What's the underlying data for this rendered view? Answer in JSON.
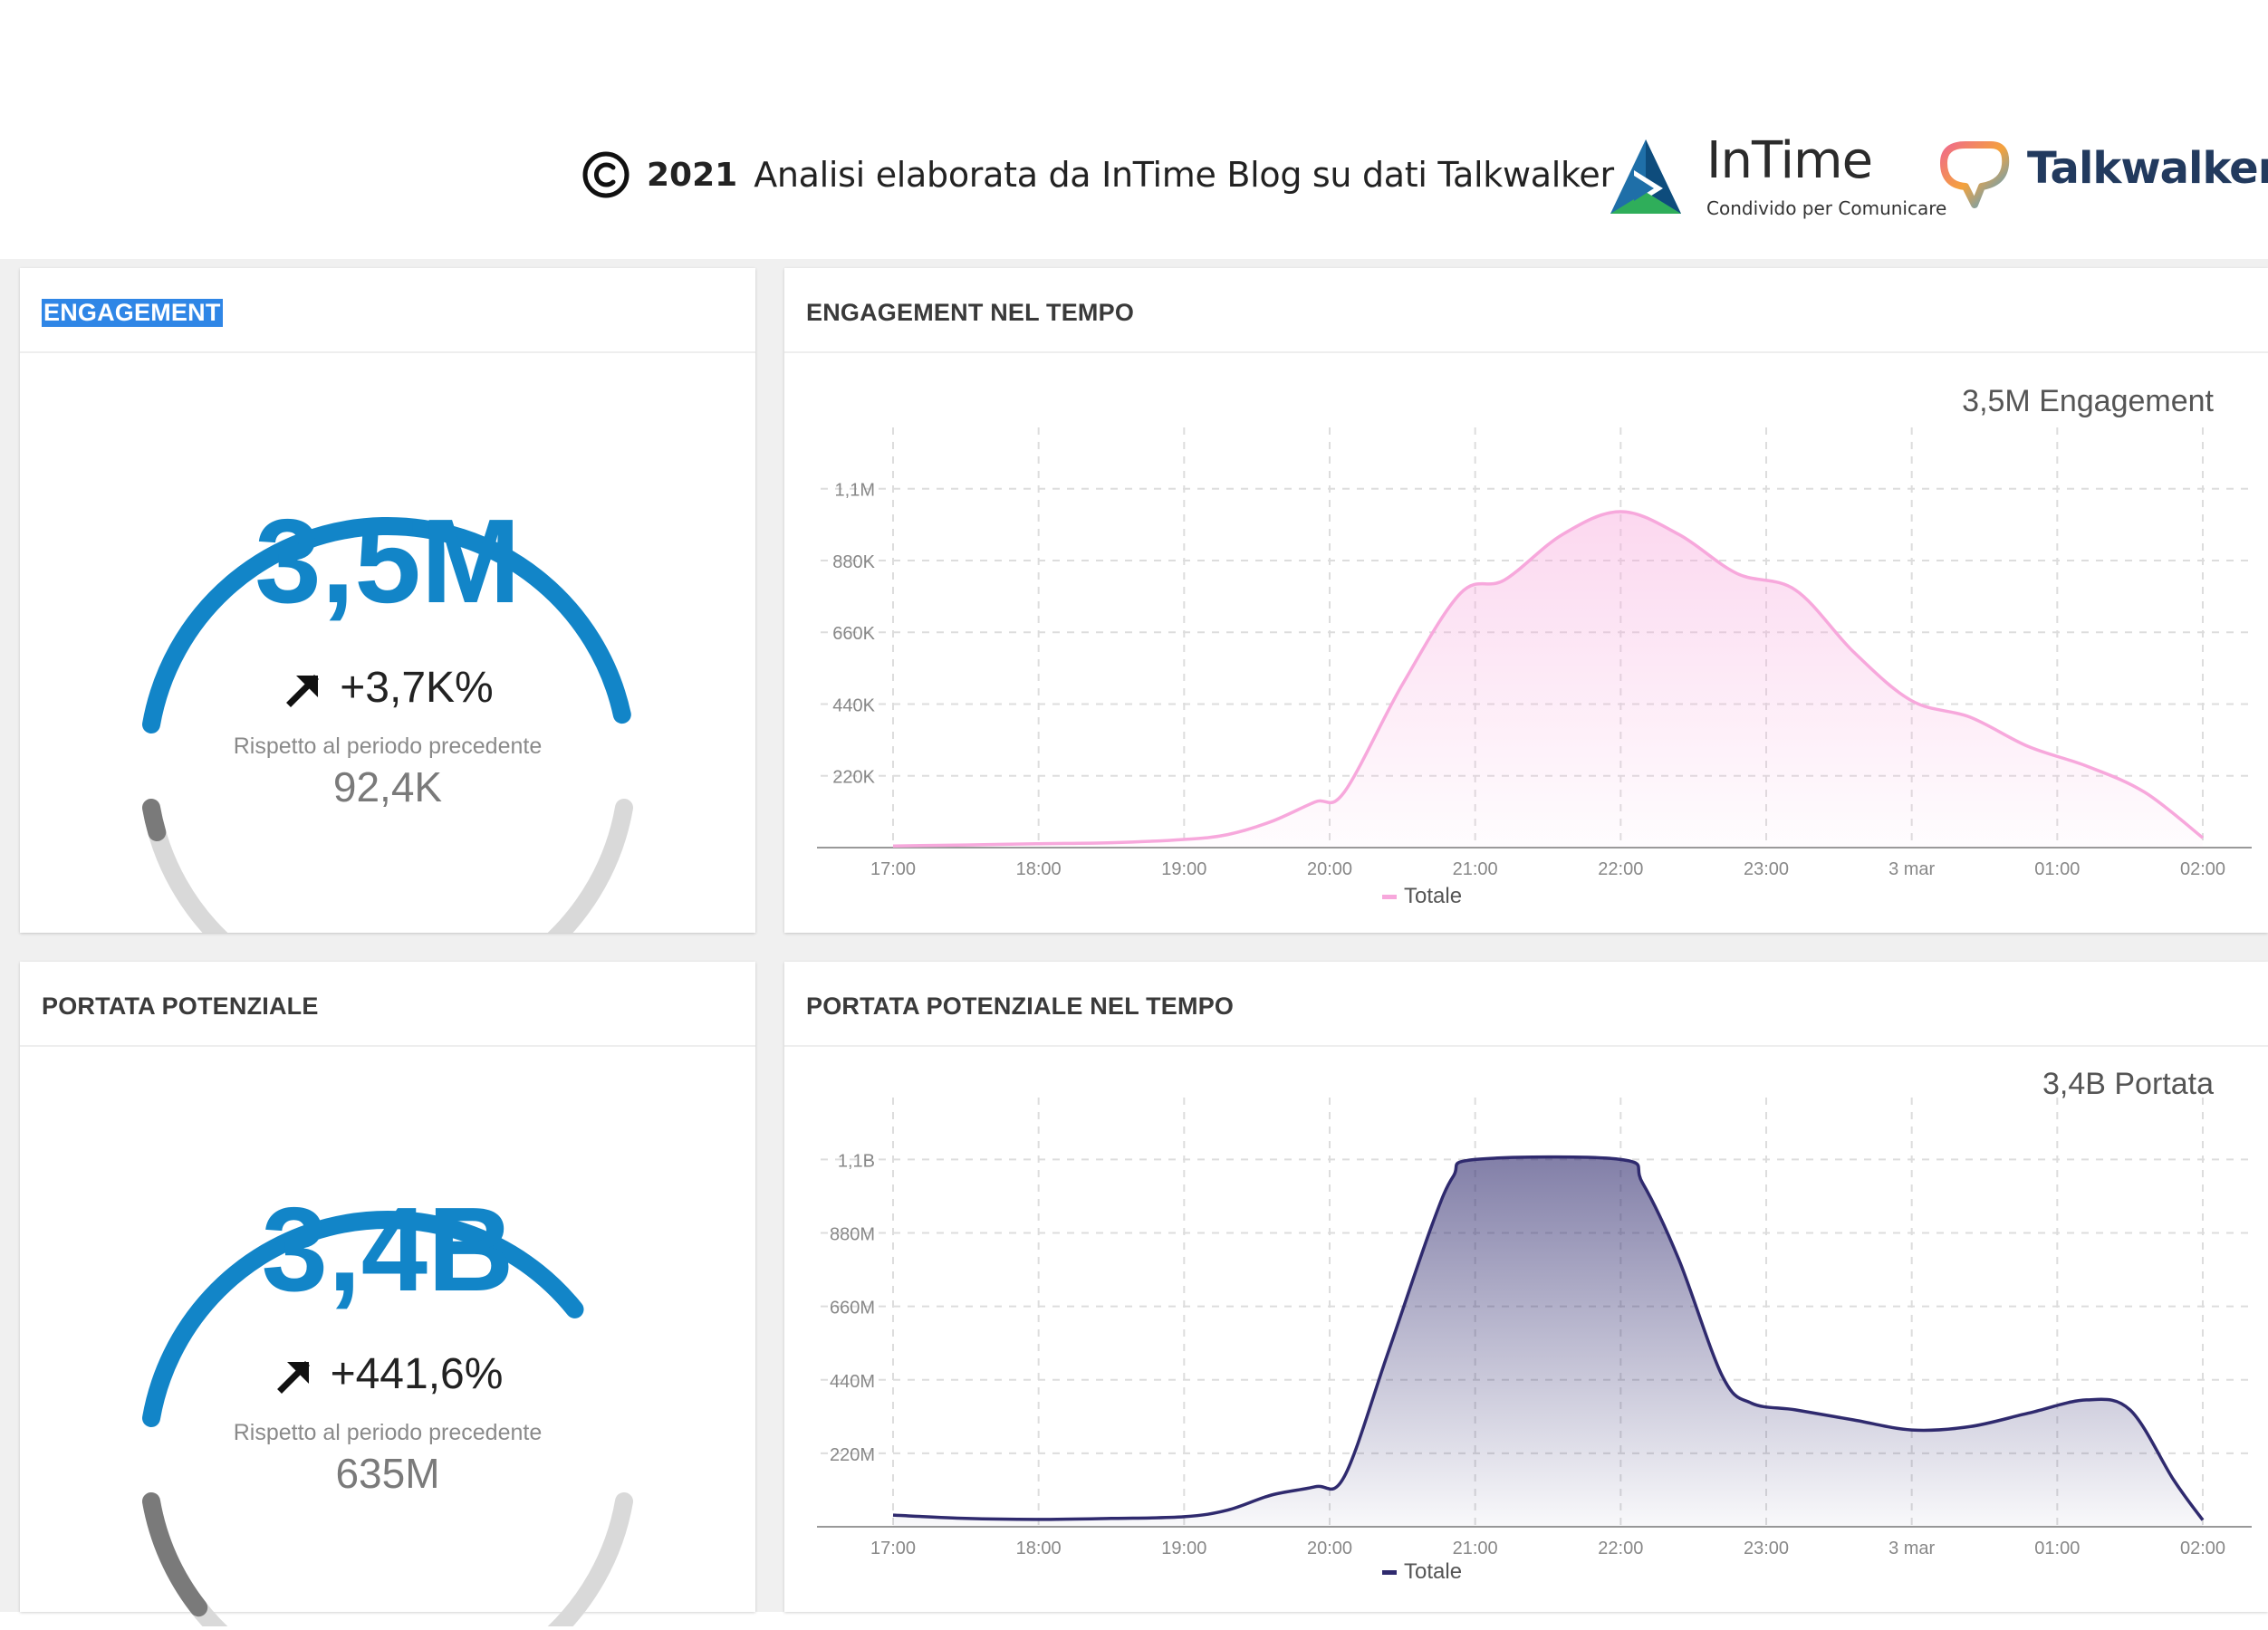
{
  "header": {
    "credit_year": "2021",
    "credit_text": "Analisi elaborata da InTime Blog su dati Talkwalker",
    "intime_name": "InTime",
    "intime_tagline": "Condivido per Comunicare",
    "talkwalker_name": "Talkwalker"
  },
  "engagement": {
    "title": "ENGAGEMENT",
    "value": "3,5M",
    "change": "+3,7K%",
    "compare_label": "Rispetto al periodo precedente",
    "previous": "92,4K",
    "gauge_fraction": 0.985
  },
  "engagement_time": {
    "title": "ENGAGEMENT NEL TEMPO",
    "total_label": "3,5M Engagement",
    "legend": "Totale",
    "color": "#f7a8dc"
  },
  "reach": {
    "title": "PORTATA POTENZIALE",
    "value": "3,4B",
    "change": "+441,6%",
    "compare_label": "Rispetto al periodo precedente",
    "previous": "635M",
    "gauge_fraction": 0.82
  },
  "reach_time": {
    "title": "PORTATA POTENZIALE NEL TEMPO",
    "total_label": "3,4B Portata",
    "legend": "Totale",
    "color": "#2f2a6e"
  },
  "chart_data": [
    {
      "type": "area",
      "title": "ENGAGEMENT NEL TEMPO",
      "categories": [
        "17:00",
        "18:00",
        "19:00",
        "20:00",
        "21:00",
        "22:00",
        "23:00",
        "3 mar",
        "01:00",
        "02:00"
      ],
      "y_tick_labels": [
        "220K",
        "440K",
        "660K",
        "880K",
        "1,1M"
      ],
      "y_ticks": [
        220000,
        440000,
        660000,
        880000,
        1100000
      ],
      "ylim": [
        0,
        1100000
      ],
      "series": [
        {
          "name": "Totale",
          "x": [
            0,
            0.5,
            1,
            1.5,
            2,
            2.3,
            2.6,
            2.9,
            3.1,
            3.5,
            3.9,
            4.2,
            4.6,
            5,
            5.4,
            5.8,
            6.2,
            6.6,
            7,
            7.4,
            7.8,
            8.2,
            8.6,
            9
          ],
          "values": [
            5000,
            8000,
            12000,
            15000,
            25000,
            40000,
            80000,
            140000,
            170000,
            500000,
            780000,
            820000,
            960000,
            1030000,
            960000,
            840000,
            790000,
            600000,
            450000,
            400000,
            310000,
            250000,
            170000,
            30000
          ]
        }
      ]
    },
    {
      "type": "area",
      "title": "PORTATA POTENZIALE NEL TEMPO",
      "categories": [
        "17:00",
        "18:00",
        "19:00",
        "20:00",
        "21:00",
        "22:00",
        "23:00",
        "3 mar",
        "01:00",
        "02:00"
      ],
      "y_tick_labels": [
        "220M",
        "440M",
        "660M",
        "880M",
        "1,1B"
      ],
      "y_ticks": [
        220,
        440,
        660,
        880,
        1100
      ],
      "ylim": [
        0,
        1100
      ],
      "series": [
        {
          "name": "Totale",
          "x": [
            0,
            0.5,
            1,
            1.5,
            2,
            2.3,
            2.6,
            2.9,
            3.1,
            3.4,
            3.7,
            3.85,
            4,
            5,
            5.15,
            5.4,
            5.7,
            5.9,
            6.2,
            6.6,
            7,
            7.4,
            7.8,
            8.2,
            8.5,
            8.8,
            9
          ],
          "values": [
            35,
            25,
            22,
            25,
            30,
            50,
            95,
            120,
            150,
            520,
            900,
            1050,
            1100,
            1100,
            1030,
            800,
            450,
            370,
            350,
            320,
            290,
            300,
            340,
            380,
            350,
            140,
            20
          ]
        }
      ]
    }
  ]
}
